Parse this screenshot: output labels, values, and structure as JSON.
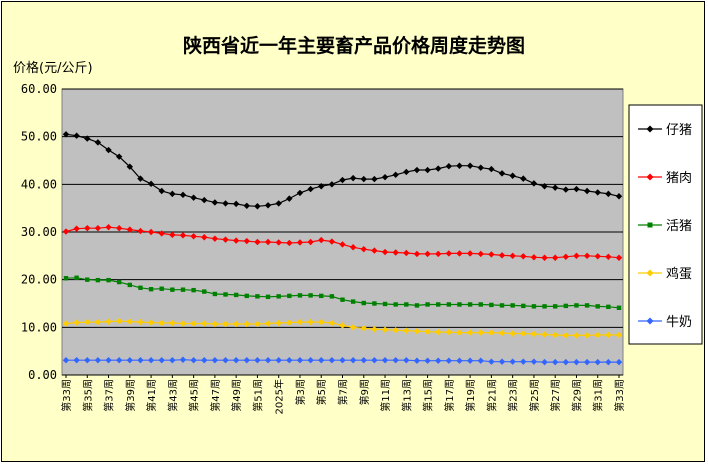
{
  "chart_data": {
    "type": "line",
    "title": "陕西省近一年主要畜产品价格周度走势图",
    "ylabel": "价格(元/公斤)",
    "xlabel": "",
    "ylim": [
      0,
      60
    ],
    "yticks": [
      "0.00",
      "10.00",
      "20.00",
      "30.00",
      "40.00",
      "50.00",
      "60.00"
    ],
    "grid": true,
    "legend": "right",
    "x_tick_labels": [
      "第33周",
      "第35周",
      "第37周",
      "第39周",
      "第41周",
      "第43周",
      "第45周",
      "第47周",
      "第49周",
      "第51周",
      "2025年",
      "第3周",
      "第5周",
      "第7周",
      "第9周",
      "第11周",
      "第13周",
      "第15周",
      "第17周",
      "第19周",
      "第21周",
      "第23周",
      "第25周",
      "第27周",
      "第29周",
      "第31周",
      "第33周"
    ],
    "x": [
      "第33周",
      "第34周",
      "第35周",
      "第36周",
      "第37周",
      "第38周",
      "第39周",
      "第40周",
      "第41周",
      "第42周",
      "第43周",
      "第44周",
      "第45周",
      "第46周",
      "第47周",
      "第48周",
      "第49周",
      "第50周",
      "第51周",
      "第52周",
      "2025年",
      "第2周",
      "第3周",
      "第4周",
      "第5周",
      "第6周",
      "第7周",
      "第8周",
      "第9周",
      "第10周",
      "第11周",
      "第12周",
      "第13周",
      "第14周",
      "第15周",
      "第16周",
      "第17周",
      "第18周",
      "第19周",
      "第20周",
      "第21周",
      "第22周",
      "第23周",
      "第24周",
      "第25周",
      "第26周",
      "第27周",
      "第28周",
      "第29周",
      "第30周",
      "第31周",
      "第32周",
      "第33周"
    ],
    "series": [
      {
        "name": "仔猪",
        "color": "#000000",
        "marker": "diamond",
        "values": [
          50.5,
          50.2,
          49.6,
          48.8,
          47.2,
          45.8,
          43.7,
          41.2,
          40.1,
          38.6,
          38.0,
          37.8,
          37.2,
          36.7,
          36.2,
          36.0,
          35.9,
          35.5,
          35.4,
          35.6,
          36.0,
          37.0,
          38.2,
          39.0,
          39.6,
          40.0,
          40.9,
          41.3,
          41.1,
          41.1,
          41.5,
          42.0,
          42.6,
          43.0,
          43.0,
          43.3,
          43.8,
          43.9,
          43.9,
          43.5,
          43.2,
          42.3,
          41.8,
          41.2,
          40.2,
          39.6,
          39.3,
          38.9,
          39.0,
          38.6,
          38.3,
          38.0,
          37.5
        ]
      },
      {
        "name": "猪肉",
        "color": "#ff0000",
        "marker": "diamond",
        "values": [
          30.1,
          30.7,
          30.8,
          30.8,
          31.0,
          30.8,
          30.5,
          30.2,
          30.0,
          29.7,
          29.4,
          29.3,
          29.1,
          28.9,
          28.6,
          28.4,
          28.2,
          28.1,
          27.9,
          27.9,
          27.8,
          27.7,
          27.8,
          27.9,
          28.3,
          28.0,
          27.4,
          26.8,
          26.4,
          26.1,
          25.8,
          25.7,
          25.6,
          25.4,
          25.4,
          25.4,
          25.5,
          25.5,
          25.5,
          25.4,
          25.3,
          25.1,
          25.0,
          24.9,
          24.7,
          24.6,
          24.6,
          24.8,
          25.0,
          25.0,
          24.9,
          24.8,
          24.6
        ]
      },
      {
        "name": "活猪",
        "color": "#008000",
        "marker": "square",
        "values": [
          20.3,
          20.4,
          20.0,
          19.9,
          19.9,
          19.5,
          18.9,
          18.3,
          18.0,
          18.1,
          17.9,
          17.9,
          17.8,
          17.5,
          17.0,
          16.9,
          16.8,
          16.6,
          16.5,
          16.4,
          16.5,
          16.6,
          16.7,
          16.7,
          16.6,
          16.5,
          15.8,
          15.4,
          15.1,
          15.0,
          14.9,
          14.8,
          14.8,
          14.6,
          14.8,
          14.8,
          14.8,
          14.8,
          14.8,
          14.8,
          14.7,
          14.6,
          14.6,
          14.5,
          14.4,
          14.4,
          14.4,
          14.5,
          14.6,
          14.6,
          14.4,
          14.3,
          14.1
        ]
      },
      {
        "name": "鸡蛋",
        "color": "#ffcc00",
        "marker": "diamond",
        "values": [
          10.8,
          11.0,
          11.1,
          11.1,
          11.2,
          11.3,
          11.2,
          11.1,
          11.0,
          10.9,
          10.9,
          10.8,
          10.8,
          10.8,
          10.7,
          10.7,
          10.7,
          10.7,
          10.7,
          10.8,
          10.9,
          11.0,
          11.1,
          11.1,
          11.1,
          10.9,
          10.4,
          10.0,
          9.8,
          9.6,
          9.5,
          9.4,
          9.3,
          9.2,
          9.1,
          9.0,
          9.0,
          8.9,
          8.9,
          8.9,
          8.9,
          8.8,
          8.7,
          8.7,
          8.6,
          8.5,
          8.4,
          8.3,
          8.3,
          8.3,
          8.4,
          8.4,
          8.4
        ]
      },
      {
        "name": "牛奶",
        "color": "#3366ff",
        "marker": "diamond",
        "values": [
          3.1,
          3.1,
          3.1,
          3.1,
          3.1,
          3.1,
          3.1,
          3.1,
          3.1,
          3.1,
          3.1,
          3.2,
          3.1,
          3.1,
          3.1,
          3.1,
          3.1,
          3.1,
          3.1,
          3.1,
          3.1,
          3.1,
          3.1,
          3.1,
          3.1,
          3.1,
          3.1,
          3.1,
          3.1,
          3.1,
          3.1,
          3.1,
          3.1,
          3.0,
          3.0,
          3.0,
          3.0,
          3.0,
          3.0,
          3.0,
          2.8,
          2.8,
          2.8,
          2.8,
          2.8,
          2.7,
          2.7,
          2.7,
          2.7,
          2.7,
          2.7,
          2.7,
          2.7
        ]
      }
    ]
  }
}
